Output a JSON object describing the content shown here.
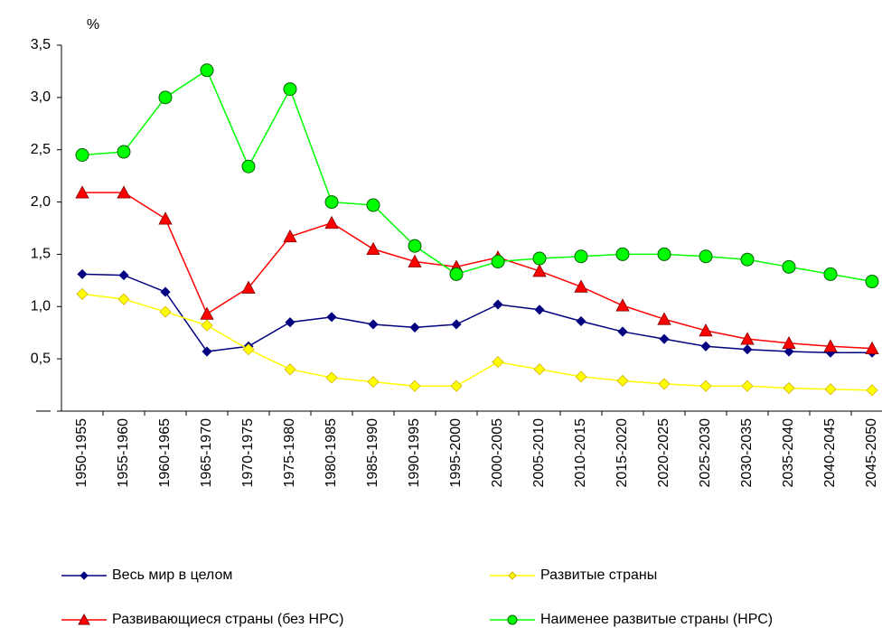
{
  "chart_data": {
    "type": "line",
    "y_label": "%",
    "categories": [
      "1950-1955",
      "1955-1960",
      "1960-1965",
      "1965-1970",
      "1970-1975",
      "1975-1980",
      "1980-1985",
      "1985-1990",
      "1990-1995",
      "1995-2000",
      "2000-2005",
      "2005-2010",
      "2010-2015",
      "2015-2020",
      "2020-2025",
      "2025-2030",
      "2030-2035",
      "2035-2040",
      "2040-2045",
      "2045-2050"
    ],
    "series": [
      {
        "name": "Весь мир в целом",
        "color": "#000080",
        "marker": "diamond",
        "values": [
          1.31,
          1.3,
          1.14,
          0.57,
          0.62,
          0.85,
          0.9,
          0.83,
          0.8,
          0.83,
          1.02,
          0.97,
          0.86,
          0.76,
          0.69,
          0.62,
          0.59,
          0.57,
          0.56,
          0.56
        ]
      },
      {
        "name": "Развитые страны",
        "color": "#ffff00",
        "marker": "diamond",
        "values": [
          1.12,
          1.07,
          0.95,
          0.82,
          0.59,
          0.4,
          0.32,
          0.28,
          0.24,
          0.24,
          0.47,
          0.4,
          0.33,
          0.29,
          0.26,
          0.24,
          0.24,
          0.22,
          0.21,
          0.2
        ]
      },
      {
        "name": "Развивающиеся страны (без НРС)",
        "color": "#ff0000",
        "marker": "triangle",
        "values": [
          2.09,
          2.09,
          1.84,
          0.93,
          1.18,
          1.67,
          1.8,
          1.55,
          1.43,
          1.38,
          1.47,
          1.34,
          1.19,
          1.01,
          0.88,
          0.77,
          0.69,
          0.65,
          0.62,
          0.6
        ]
      },
      {
        "name": "Наименее развитые страны (НРС)",
        "color": "#00ff00",
        "marker": "circle",
        "values": [
          2.45,
          2.48,
          3.0,
          3.26,
          2.34,
          3.08,
          2.0,
          1.97,
          1.58,
          1.31,
          1.43,
          1.46,
          1.48,
          1.5,
          1.5,
          1.48,
          1.45,
          1.38,
          1.31,
          1.24
        ]
      }
    ],
    "ylim": [
      0,
      3.5
    ],
    "yticks": [
      {
        "value": 0,
        "label": "—"
      },
      {
        "value": 0.5,
        "label": "0,5"
      },
      {
        "value": 1,
        "label": "1,0"
      },
      {
        "value": 1.5,
        "label": "1,5"
      },
      {
        "value": 2,
        "label": "2,0"
      },
      {
        "value": 2.5,
        "label": "2,5"
      },
      {
        "value": 3,
        "label": "3,0"
      },
      {
        "value": 3.5,
        "label": "3,5"
      }
    ]
  }
}
